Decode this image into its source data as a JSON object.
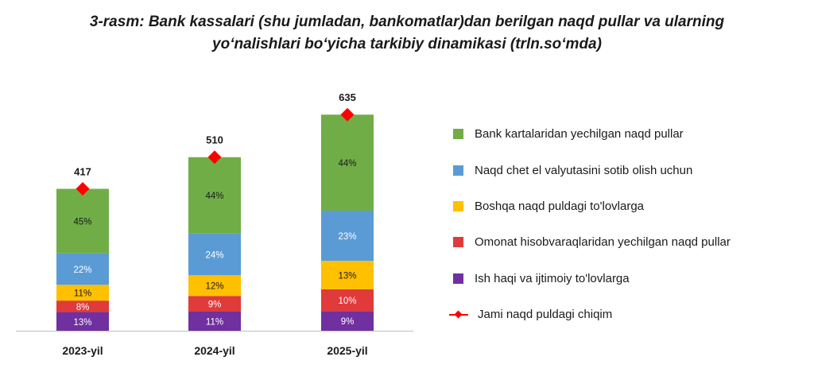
{
  "title_line1": "3-rasm: Bank kassalari (shu jumladan, bankomatlar)dan berilgan naqd pullar va ularning",
  "title_line2": "yo‘nalishlari bo‘yicha tarkibiy dinamikasi (trln.so‘mda)",
  "colors": {
    "green": "#70ad47",
    "blue": "#5b9bd5",
    "yellow": "#ffc000",
    "red": "#e03a3a",
    "purple": "#7030a0",
    "total": "#ff0000"
  },
  "chart_data": {
    "type": "bar",
    "stacked": true,
    "categories": [
      "2023-yil",
      "2024-yil",
      "2025-yil"
    ],
    "series": [
      {
        "name": "Ish haqi va ijtimoiy to'lovlarga",
        "color_key": "purple",
        "values": [
          13,
          11,
          9
        ],
        "labels": [
          "13%",
          "11%",
          "9%"
        ]
      },
      {
        "name": "Omonat hisobvaraqlaridan yechilgan naqd pullar",
        "color_key": "red",
        "values": [
          8,
          9,
          10
        ],
        "labels": [
          "8%",
          "9%",
          "10%"
        ]
      },
      {
        "name": "Boshqa naqd puldagi to'lovlarga",
        "color_key": "yellow",
        "values": [
          11,
          12,
          13
        ],
        "labels": [
          "11%",
          "12%",
          "13%"
        ]
      },
      {
        "name": "Naqd chet el valyutasini sotib olish uchun",
        "color_key": "blue",
        "values": [
          22,
          24,
          23
        ],
        "labels": [
          "22%",
          "24%",
          "23%"
        ]
      },
      {
        "name": "Bank kartalaridan yechilgan naqd pullar",
        "color_key": "green",
        "values": [
          45,
          44,
          44
        ],
        "labels": [
          "45%",
          "44%",
          "44%"
        ]
      }
    ],
    "totals": {
      "name": "Jami naqd puldagi chiqim",
      "values": [
        417,
        510,
        635
      ],
      "labels": [
        "417",
        "510",
        "635"
      ]
    },
    "ylim": [
      0,
      650
    ],
    "legend_position": "right"
  },
  "legend": [
    {
      "label": "Bank kartalaridan yechilgan naqd pullar",
      "color_key": "green"
    },
    {
      "label": "Naqd chet el valyutasini sotib olish uchun",
      "color_key": "blue"
    },
    {
      "label": "Boshqa naqd puldagi to'lovlarga",
      "color_key": "yellow"
    },
    {
      "label": "Omonat hisobvaraqlaridan yechilgan naqd pullar",
      "color_key": "red"
    },
    {
      "label": "Ish haqi va ijtimoiy to'lovlarga",
      "color_key": "purple"
    },
    {
      "label": "Jami naqd puldagi chiqim",
      "color_key": "total"
    }
  ]
}
